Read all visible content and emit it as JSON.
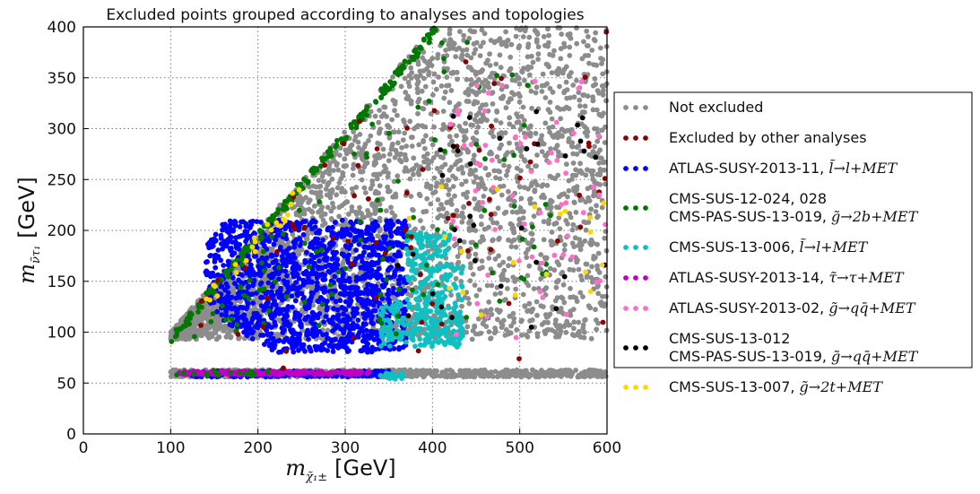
{
  "chart_data": {
    "type": "scatter",
    "title": "Excluded points grouped according to analyses and topologies",
    "xlabel": {
      "main": "m",
      "sub": "χ̃₁±",
      "unit": "[GeV]"
    },
    "ylabel": {
      "main": "m",
      "sub": "ν̃τ₁",
      "unit": "[GeV]"
    },
    "xlim": [
      0,
      600
    ],
    "ylim": [
      0,
      400
    ],
    "xticks": [
      0,
      100,
      200,
      300,
      400,
      500,
      600
    ],
    "yticks": [
      0,
      50,
      100,
      150,
      200,
      250,
      300,
      350,
      400
    ],
    "grid": true,
    "legend_position": "outside-right",
    "series": [
      {
        "name": "Not excluded",
        "color": "#8c8c8c",
        "label_lines": [
          {
            "text": "Not excluded",
            "math": ""
          }
        ]
      },
      {
        "name": "Excluded by other analyses",
        "color": "#8b0000",
        "label_lines": [
          {
            "text": "Excluded by other analyses",
            "math": ""
          }
        ]
      },
      {
        "name": "ATLAS-SUSY-2013-11",
        "color": "#0000ff",
        "label_lines": [
          {
            "text": "ATLAS-SUSY-2013-11, ",
            "math": "l̃→l+MET"
          }
        ]
      },
      {
        "name": "CMS-SUS-12-024, 028 / CMS-PAS-SUS-13-019",
        "color": "#007800",
        "label_lines": [
          {
            "text": "CMS-SUS-12-024, 028",
            "math": ""
          },
          {
            "text": "CMS-PAS-SUS-13-019, ",
            "math": "g̃→2b+MET"
          }
        ]
      },
      {
        "name": "CMS-SUS-13-006",
        "color": "#10c0c0",
        "label_lines": [
          {
            "text": "CMS-SUS-13-006, ",
            "math": "l̃→l+MET"
          }
        ]
      },
      {
        "name": "ATLAS-SUSY-2013-14",
        "color": "#c000c0",
        "label_lines": [
          {
            "text": "ATLAS-SUSY-2013-14, ",
            "math": "τ̃→τ+MET"
          }
        ]
      },
      {
        "name": "ATLAS-SUSY-2013-02",
        "color": "#ff6ec7",
        "label_lines": [
          {
            "text": "ATLAS-SUSY-2013-02, ",
            "math": "g̃→qq̄+MET"
          }
        ]
      },
      {
        "name": "CMS-SUS-13-012 / CMS-PAS-SUS-13-019",
        "color": "#000000",
        "label_lines": [
          {
            "text": "CMS-SUS-13-012",
            "math": ""
          },
          {
            "text": "CMS-PAS-SUS-13-019, ",
            "math": "g̃→qq̄+MET"
          }
        ]
      },
      {
        "name": "CMS-SUS-13-007",
        "color": "#ffd700",
        "label_lines": [
          {
            "text": "CMS-SUS-13-007, ",
            "math": "g̃→2t+MET"
          }
        ]
      }
    ],
    "regions": {
      "not_excluded": {
        "diagonal_band": {
          "x": [
            100,
            600
          ],
          "y_min": 93,
          "y_upper": "m_sneutrino < m_chargino"
        },
        "low_band": {
          "x": [
            100,
            600
          ],
          "y": [
            55,
            63
          ]
        }
      },
      "atlas_2013_11": {
        "x": [
          140,
          370
        ],
        "y": [
          80,
          210
        ],
        "low_band_x": [
          120,
          350
        ]
      },
      "cms_13_006": {
        "x": [
          330,
          430
        ],
        "y": [
          85,
          200
        ]
      },
      "cms_12_024": {
        "near_diagonal": true,
        "x": [
          100,
          410
        ]
      },
      "atlas_2013_14": {
        "low_band_x": [
          110,
          330
        ]
      }
    }
  }
}
